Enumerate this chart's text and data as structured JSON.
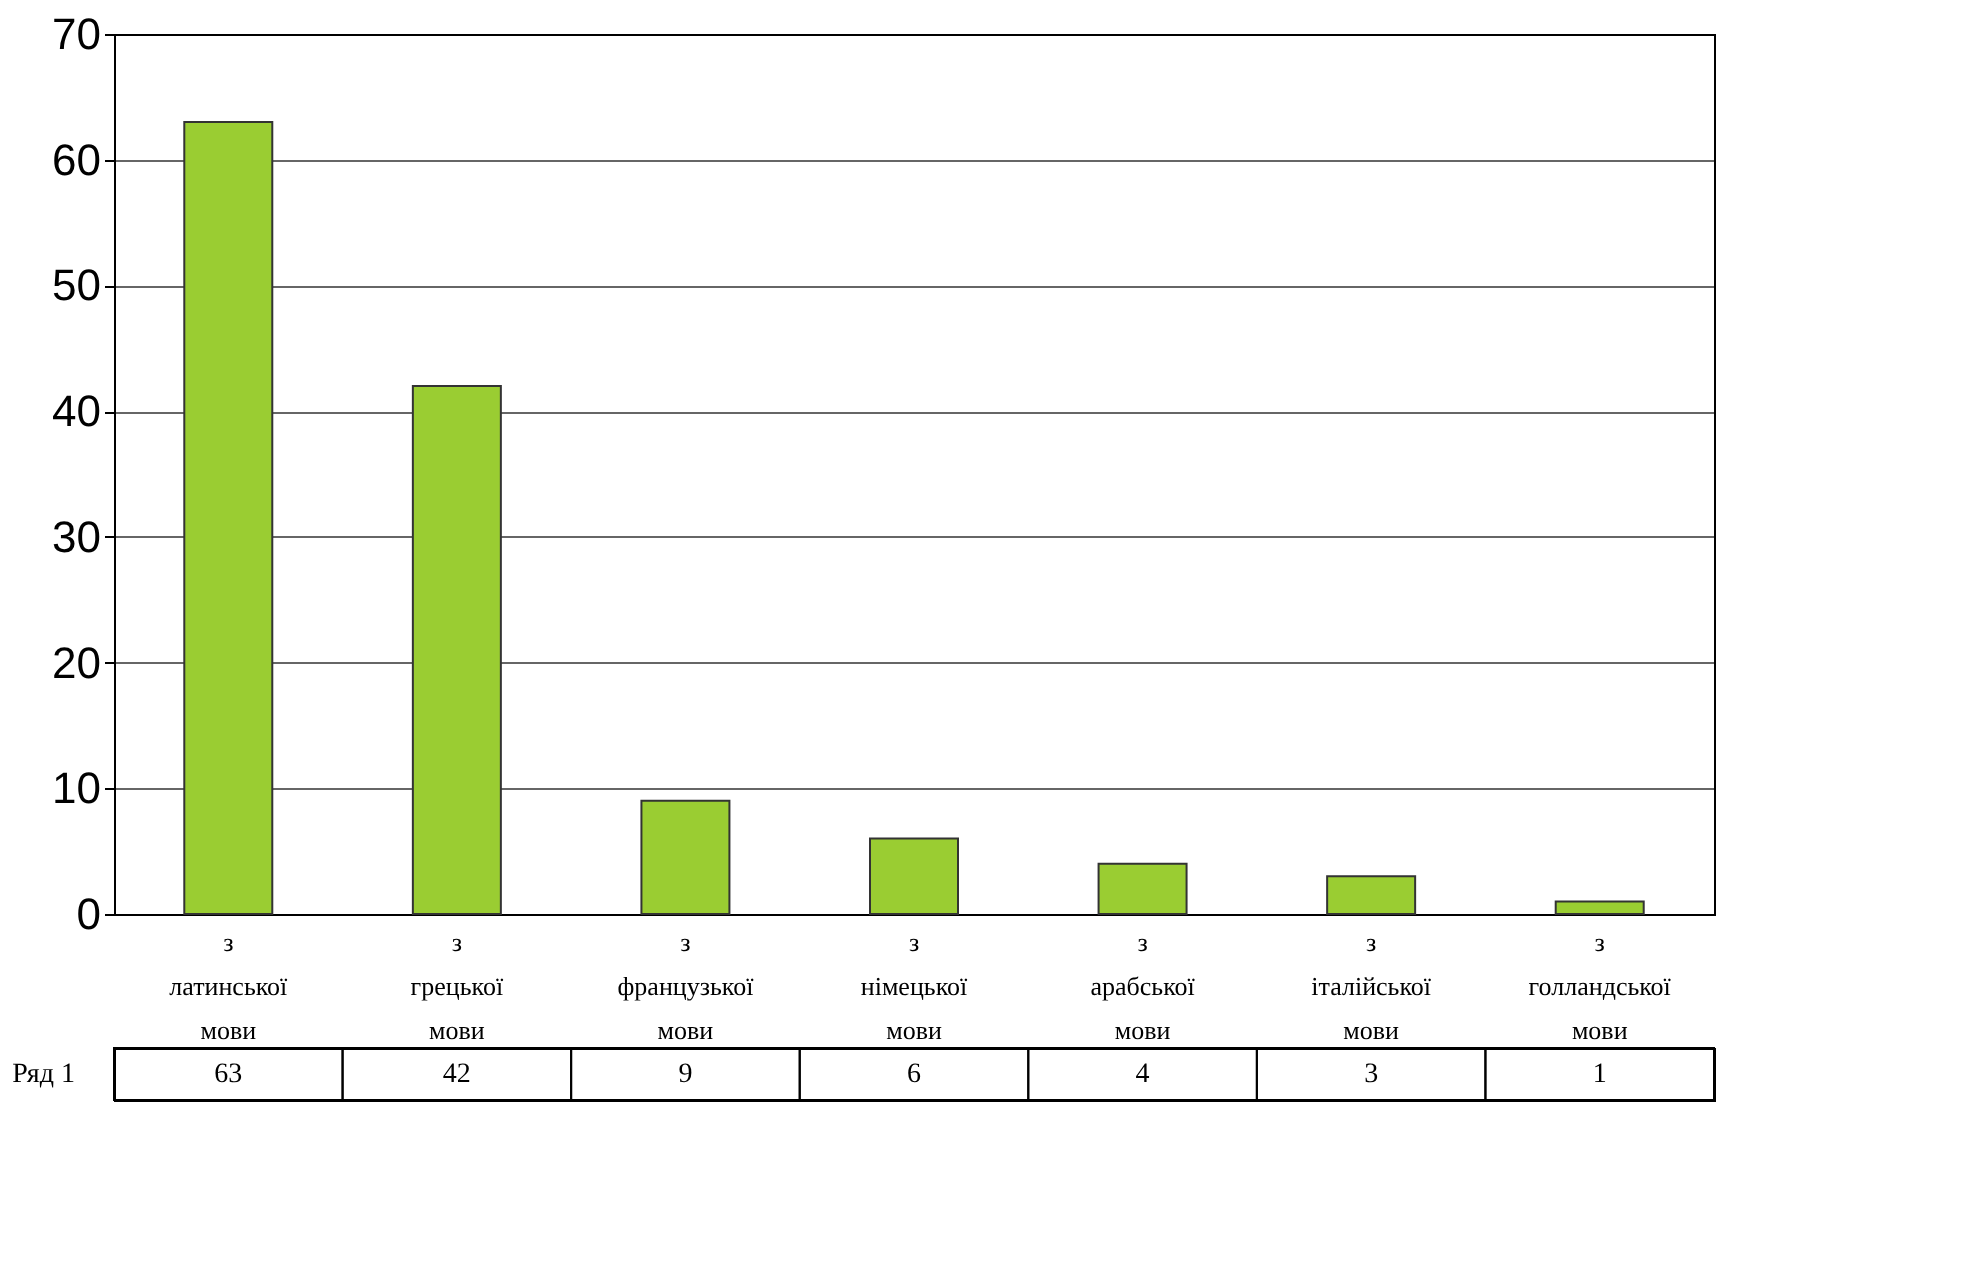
{
  "chart_data": {
    "type": "bar",
    "categories": [
      "з латинської мови",
      "з грецької мови",
      "з французької мови",
      "з німецької мови",
      "з арабської мови",
      "з італійської мови",
      "з голландської мови"
    ],
    "series": [
      {
        "name": "Ряд 1",
        "color": "#9acd32",
        "values": [
          63,
          42,
          9,
          6,
          4,
          3,
          1
        ]
      }
    ],
    "ylim": [
      0,
      70
    ],
    "yticks": [
      0,
      10,
      20,
      30,
      40,
      50,
      60,
      70
    ],
    "grid": "y",
    "data_labels": true
  }
}
